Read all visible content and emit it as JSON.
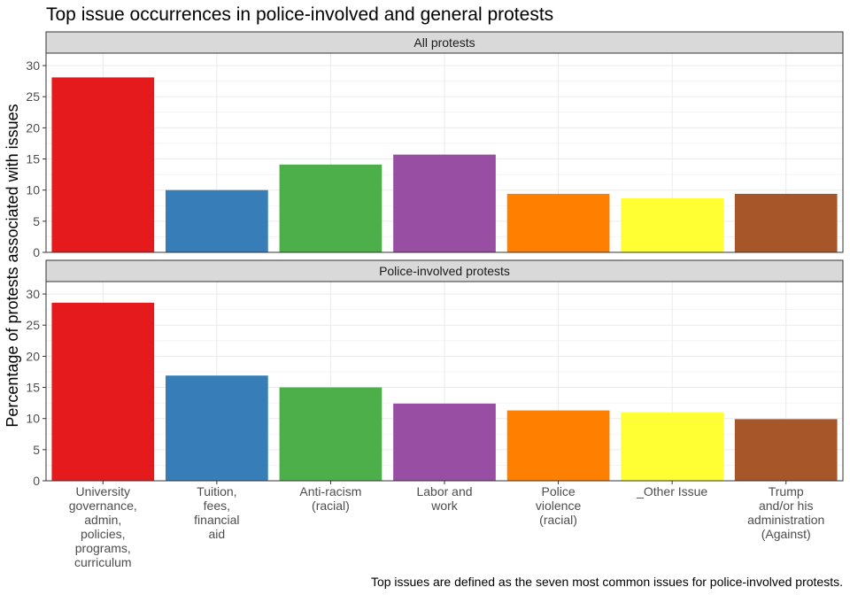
{
  "chart_data": {
    "type": "bar",
    "title": "Top issue occurrences in police-involved and general protests",
    "ylabel": "Percentage of protests associated with issues",
    "xlabel": "",
    "caption": "Top issues are defined as the seven most common issues for police-involved protests.",
    "ylim": [
      0,
      32
    ],
    "yticks": [
      0,
      5,
      10,
      15,
      20,
      25,
      30
    ],
    "grid": true,
    "legend": "none",
    "categories": [
      "University governance, admin, policies, programs, curriculum",
      "Tuition, fees, financial aid",
      "Anti-racism (racial)",
      "Labor and work",
      "Police violence (racial)",
      "_Other Issue",
      "Trump and/or his administration (Against)"
    ],
    "category_label_lines": [
      [
        "University",
        "governance,",
        "admin,",
        "policies,",
        "programs,",
        "curriculum"
      ],
      [
        "Tuition,",
        "fees,",
        "financial",
        "aid"
      ],
      [
        "Anti-racism",
        "(racial)"
      ],
      [
        "Labor and",
        "work"
      ],
      [
        "Police",
        "violence",
        "(racial)"
      ],
      [
        "_Other Issue"
      ],
      [
        "Trump",
        "and/or his",
        "administration",
        "(Against)"
      ]
    ],
    "colors": [
      "#e41a1c",
      "#377eb8",
      "#4daf4a",
      "#984ea3",
      "#ff7f00",
      "#ffff33",
      "#a65628"
    ],
    "panels": [
      {
        "name": "All protests",
        "values": [
          28.1,
          10.0,
          14.1,
          15.7,
          9.4,
          8.7,
          9.4
        ]
      },
      {
        "name": "Police-involved protests",
        "values": [
          28.6,
          16.9,
          15.0,
          12.4,
          11.3,
          11.0,
          9.9
        ]
      }
    ]
  }
}
